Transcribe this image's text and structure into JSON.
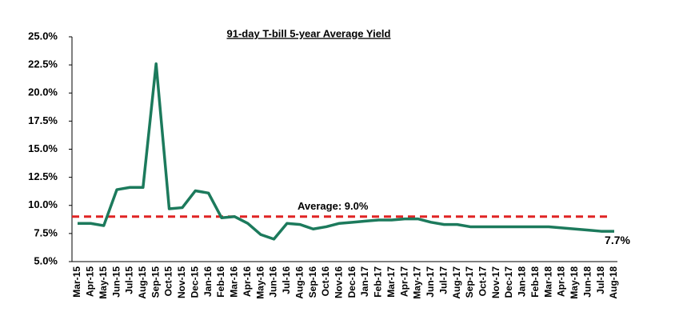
{
  "chart_data": {
    "type": "line",
    "title": "91-day T-bill  5-year Average  Yield",
    "categories": [
      "Mar-15",
      "Apr-15",
      "May-15",
      "Jun-15",
      "Jul-15",
      "Aug-15",
      "Sep-15",
      "Oct-15",
      "Nov-15",
      "Dec-15",
      "Jan-16",
      "Feb-16",
      "Mar-16",
      "Apr-16",
      "May-16",
      "Jun-16",
      "Jul-16",
      "Aug-16",
      "Sep-16",
      "Oct-16",
      "Nov-16",
      "Dec-16",
      "Jan-17",
      "Feb-17",
      "Mar-17",
      "Apr-17",
      "May-17",
      "Jun-17",
      "Jul-17",
      "Aug-17",
      "Sep-17",
      "Oct-17",
      "Nov-17",
      "Dec-17",
      "Jan-18",
      "Feb-18",
      "Mar-18",
      "Apr-18",
      "May-18",
      "Jun-18",
      "Jul-18",
      "Aug-18"
    ],
    "series": [
      {
        "name": "91-day T-bill",
        "color": "#1c7a5c",
        "values": [
          8.4,
          8.4,
          8.2,
          11.4,
          11.6,
          11.6,
          22.6,
          9.7,
          9.8,
          11.3,
          11.1,
          8.9,
          9.0,
          8.4,
          7.4,
          7.0,
          8.4,
          8.3,
          7.9,
          8.1,
          8.4,
          8.5,
          8.6,
          8.7,
          8.7,
          8.8,
          8.8,
          8.5,
          8.3,
          8.3,
          8.1,
          8.1,
          8.1,
          8.1,
          8.1,
          8.1,
          8.1,
          8.0,
          7.9,
          7.8,
          7.7,
          7.7
        ],
        "value_labels": [
          null,
          null,
          null,
          null,
          null,
          null,
          null,
          null,
          null,
          null,
          null,
          null,
          null,
          null,
          null,
          null,
          null,
          null,
          null,
          null,
          null,
          null,
          null,
          null,
          null,
          null,
          null,
          null,
          null,
          null,
          null,
          null,
          null,
          null,
          null,
          null,
          null,
          null,
          null,
          null,
          null,
          "7.7%"
        ]
      }
    ],
    "reference_line": {
      "value": 9.0,
      "label": "Average: 9.0%",
      "color": "#e02424"
    },
    "ylim": [
      5,
      25
    ],
    "yticks": [
      {
        "value": 5,
        "label": "5.0%"
      },
      {
        "value": 7.5,
        "label": "7.5%"
      },
      {
        "value": 10,
        "label": "10.0%"
      },
      {
        "value": 12.5,
        "label": "12.5%"
      },
      {
        "value": 15,
        "label": "15.0%"
      },
      {
        "value": 17.5,
        "label": "17.5%"
      },
      {
        "value": 20,
        "label": "20.0%"
      },
      {
        "value": 22.5,
        "label": "22.5%"
      },
      {
        "value": 25,
        "label": "25.0%"
      }
    ],
    "grid": false
  }
}
